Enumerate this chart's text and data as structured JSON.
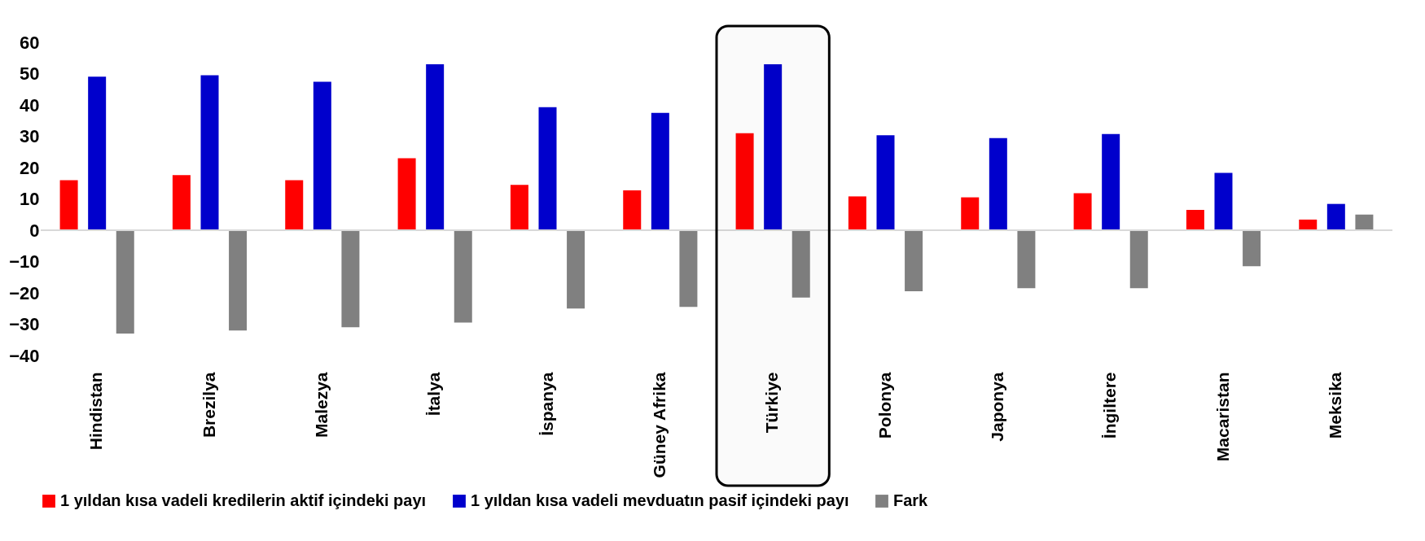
{
  "chart_data": {
    "type": "bar",
    "categories": [
      "Hindistan",
      "Brezilya",
      "Malezya",
      "İtalya",
      "İspanya",
      "Güney Afrika",
      "Türkiye",
      "Polonya",
      "Japonya",
      "İngiltere",
      "Macaristan",
      "Meksika"
    ],
    "series": [
      {
        "name": "1 yıldan kısa vadeli kredilerin aktif içindeki payı",
        "color": "#ff0000",
        "values": [
          16,
          17.6,
          16,
          23,
          14.5,
          12.7,
          31,
          10.8,
          10.5,
          11.8,
          6.5,
          3.4
        ]
      },
      {
        "name": "1 yıldan kısa vadeli mevduatın pasif içindeki payı",
        "color": "#0000cc",
        "values": [
          49,
          49.5,
          47.4,
          53,
          39.3,
          37.5,
          53,
          30.3,
          29.4,
          30.7,
          18.3,
          8.4
        ]
      },
      {
        "name": "Fark",
        "color": "#808080",
        "values": [
          -33,
          -32,
          -31,
          -29.5,
          -25,
          -24.5,
          -21.5,
          -19.5,
          -18.5,
          -18.5,
          -11.5,
          5
        ]
      }
    ],
    "ylim": [
      -40,
      60
    ],
    "yticks": [
      -40,
      -30,
      -20,
      -10,
      0,
      10,
      20,
      30,
      40,
      50,
      60
    ],
    "ref_lines": [
      {
        "axis": "y",
        "value": 0,
        "color": "#d9d9d9"
      }
    ],
    "bands": [
      {
        "axis": "x",
        "from": "Türkiye",
        "to": "Türkiye",
        "color": "#000000"
      }
    ],
    "grid": false,
    "legend": "bottom"
  }
}
